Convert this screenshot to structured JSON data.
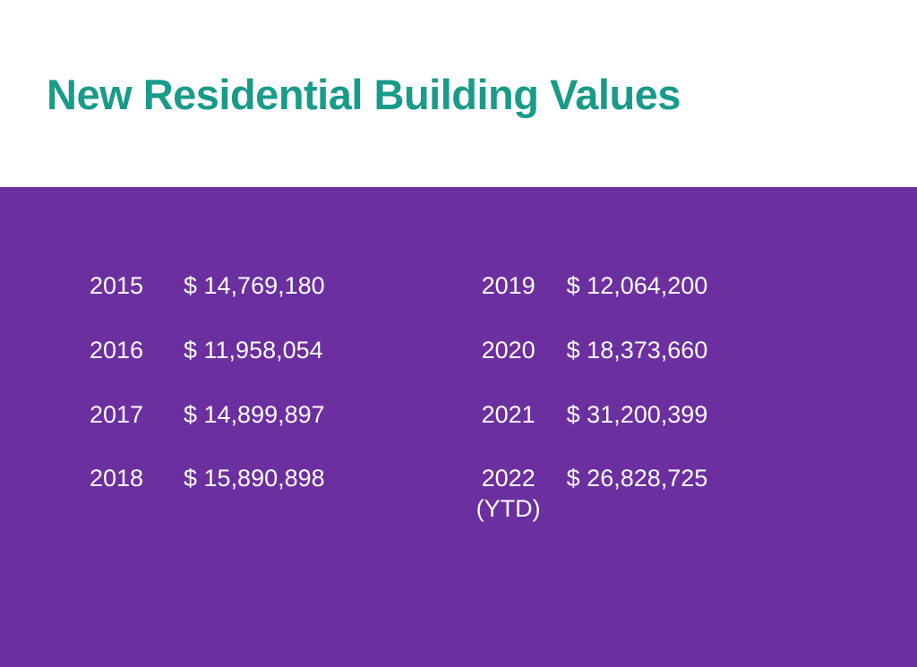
{
  "title": "New Residential Building Values",
  "title_color": "#199b8a",
  "title_fontsize": 47,
  "title_fontweight": 700,
  "header_background": "#ffffff",
  "body_background": "#6b2fa0",
  "text_color": "#ffffff",
  "cell_fontsize": 27,
  "columns": [
    [
      {
        "year": "2015",
        "value": "$ 14,769,180"
      },
      {
        "year": "2016",
        "value": "$ 11,958,054"
      },
      {
        "year": "2017",
        "value": "$ 14,899,897"
      },
      {
        "year": "2018",
        "value": "$ 15,890,898"
      }
    ],
    [
      {
        "year": "2019",
        "value": "$ 12,064,200"
      },
      {
        "year": "2020",
        "value": "$ 18,373,660"
      },
      {
        "year": "2021",
        "value": "$ 31,200,399"
      },
      {
        "year": "2022 (YTD)",
        "value": "$ 26,828,725"
      }
    ]
  ]
}
